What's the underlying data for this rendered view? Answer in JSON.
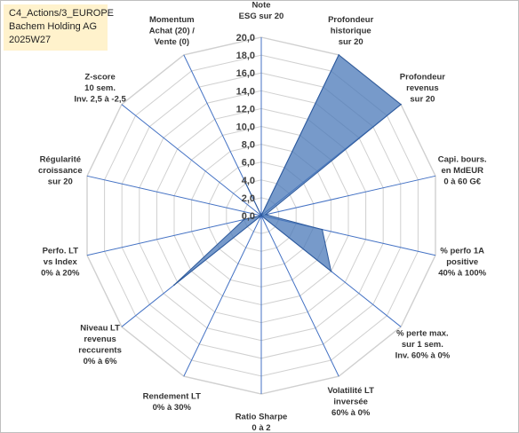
{
  "title": {
    "line1": "C4_Actions/3_EUROPE",
    "line2": "Bachem Holding AG",
    "line3": "2025W27"
  },
  "colors": {
    "fill": "#4a78b8",
    "fill_opacity": 0.75,
    "stroke": "#2e5a9c",
    "grid": "#d0d0d0",
    "spoke": "#4472c4",
    "title_bg": "#fff2cc"
  },
  "chart_data": {
    "type": "radar",
    "rmin": 0,
    "rmax": 20,
    "tick_step": 2,
    "tick_labels": [
      "0,0",
      "2,0",
      "4,0",
      "6,0",
      "8,0",
      "10,0",
      "12,0",
      "14,0",
      "16,0",
      "18,0",
      "20,0"
    ],
    "grid": true,
    "axes": [
      {
        "label": [
          "Note",
          "ESG sur 20"
        ],
        "value": 0
      },
      {
        "label": [
          "Profondeur",
          "historique",
          "sur 20"
        ],
        "value": 20
      },
      {
        "label": [
          "Profondeur",
          "revenus",
          "sur 20"
        ],
        "value": 20
      },
      {
        "label": [
          "Capi. bours.",
          "en MdEUR",
          "0 à 60 G€"
        ],
        "value": 0.5
      },
      {
        "label": [
          "% perfo 1A",
          "positive",
          "40% à 100%"
        ],
        "value": 7
      },
      {
        "label": [
          "% perte max.",
          "sur 1 sem.",
          "Inv. 60% à 0%"
        ],
        "value": 10
      },
      {
        "label": [
          "Volatilité LT",
          "inversée",
          "60% à 0%"
        ],
        "value": 0
      },
      {
        "label": [
          "Ratio Sharpe",
          "0 à 2"
        ],
        "value": 0
      },
      {
        "label": [
          "Rendement LT",
          "0% à 30%"
        ],
        "value": 0
      },
      {
        "label": [
          "Niveau LT",
          "revenus",
          "reccurents",
          "0% à 6%"
        ],
        "value": 12.5
      },
      {
        "label": [
          "Perfo. LT",
          "vs Index",
          "0% à 20%"
        ],
        "value": 2
      },
      {
        "label": [
          "Régularité",
          "croissance",
          "sur 20"
        ],
        "value": 0
      },
      {
        "label": [
          "Z-score",
          "10 sem.",
          "Inv. 2,5 à -2,5"
        ],
        "value": 0
      },
      {
        "label": [
          "Momentum",
          "Achat (20) /",
          "Vente (0)"
        ],
        "value": 4
      }
    ]
  }
}
